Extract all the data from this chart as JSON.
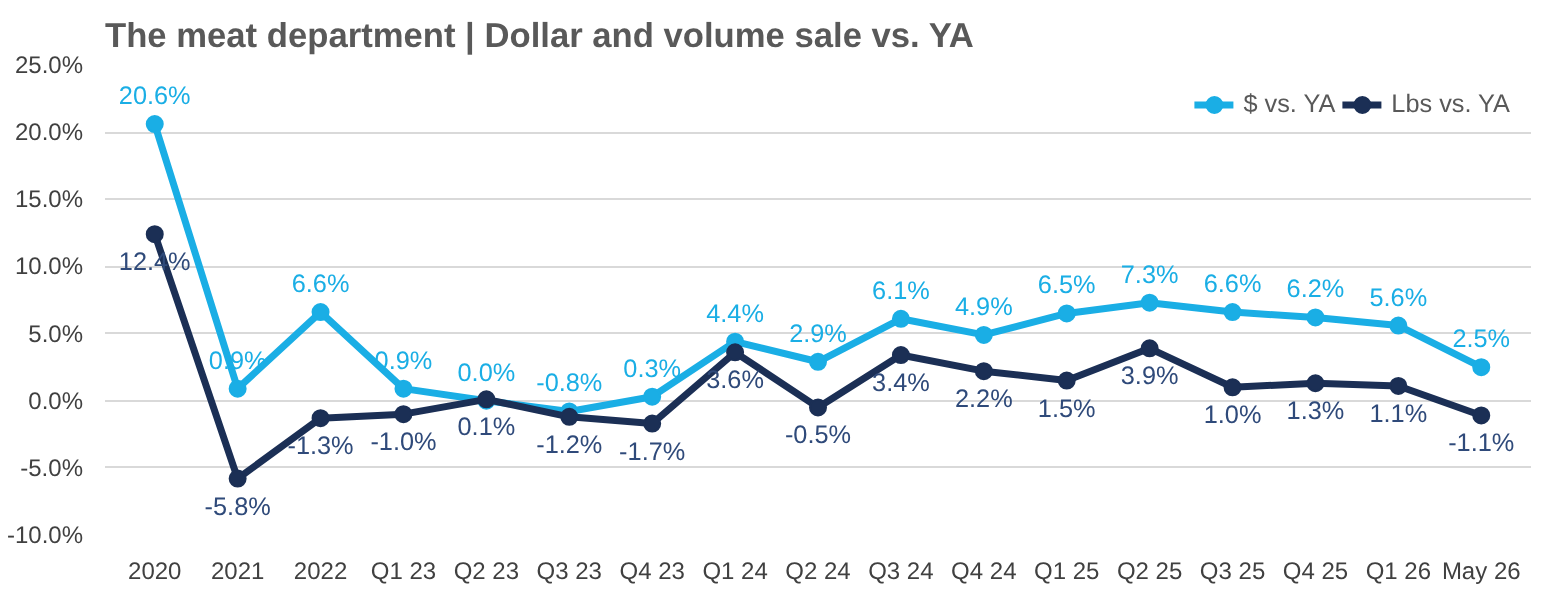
{
  "chart_data": {
    "type": "line",
    "title": "The meat department | Dollar and volume sale vs. YA",
    "categories": [
      "2020",
      "2021",
      "2022",
      "Q1 23",
      "Q2 23",
      "Q3 23",
      "Q4 23",
      "Q1 24",
      "Q2 24",
      "Q3 24",
      "Q4 24",
      "Q1 25",
      "Q2 25",
      "Q3 25",
      "Q4 25",
      "Q1 26",
      "May 26"
    ],
    "series": [
      {
        "name": "$ vs. YA",
        "color": "#1aaee5",
        "values": [
          20.6,
          0.9,
          6.6,
          0.9,
          0.0,
          -0.8,
          0.3,
          4.4,
          2.9,
          6.1,
          4.9,
          6.5,
          7.3,
          6.6,
          6.2,
          5.6,
          2.5
        ],
        "value_labels": [
          "20.6%",
          "0.9%",
          "6.6%",
          "0.9%",
          "0.0%",
          "-0.8%",
          "0.3%",
          "4.4%",
          "2.9%",
          "6.1%",
          "4.9%",
          "6.5%",
          "7.3%",
          "6.6%",
          "6.2%",
          "5.6%",
          "2.5%"
        ]
      },
      {
        "name": "Lbs vs. YA",
        "color": "#1b2f55",
        "values": [
          12.4,
          -5.8,
          -1.3,
          -1.0,
          0.1,
          -1.2,
          -1.7,
          3.6,
          -0.5,
          3.4,
          2.2,
          1.5,
          3.9,
          1.0,
          1.3,
          1.1,
          -1.1
        ],
        "value_labels": [
          "12.4%",
          "-5.8%",
          "-1.3%",
          "-1.0%",
          "0.1%",
          "-1.2%",
          "-1.7%",
          "3.6%",
          "-0.5%",
          "3.4%",
          "2.2%",
          "1.5%",
          "3.9%",
          "1.0%",
          "1.3%",
          "1.1%",
          "-1.1%"
        ]
      }
    ],
    "ylim": [
      -10,
      25
    ],
    "yticks": [
      {
        "value": -10,
        "label": "-10.0%"
      },
      {
        "value": -5,
        "label": "-5.0%"
      },
      {
        "value": 0,
        "label": "0.0%"
      },
      {
        "value": 5,
        "label": "5.0%"
      },
      {
        "value": 10,
        "label": "10.0%"
      },
      {
        "value": 15,
        "label": "15.0%"
      },
      {
        "value": 20,
        "label": "20.0%"
      },
      {
        "value": 25,
        "label": "25.0%"
      }
    ],
    "grid": "y",
    "legend": "top right",
    "marker": "circle",
    "line_style": "solid"
  }
}
